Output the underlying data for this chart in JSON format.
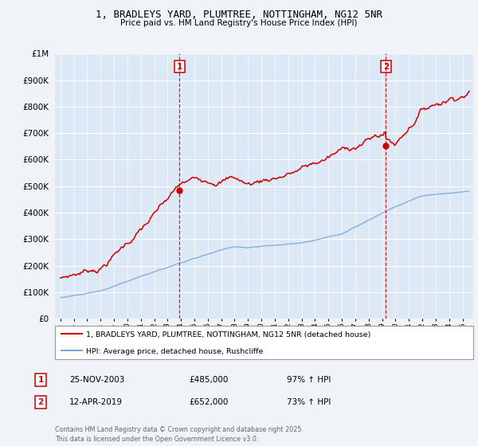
{
  "title": "1, BRADLEYS YARD, PLUMTREE, NOTTINGHAM, NG12 5NR",
  "subtitle": "Price paid vs. HM Land Registry's House Price Index (HPI)",
  "background_color": "#f0f4f8",
  "plot_bg_color": "#dce8f5",
  "legend_line1": "1, BRADLEYS YARD, PLUMTREE, NOTTINGHAM, NG12 5NR (detached house)",
  "legend_line2": "HPI: Average price, detached house, Rushcliffe",
  "annotation1": {
    "num": "1",
    "date": "25-NOV-2003",
    "price": "£485,000",
    "change": "97% ↑ HPI"
  },
  "annotation2": {
    "num": "2",
    "date": "12-APR-2019",
    "price": "£652,000",
    "change": "73% ↑ HPI"
  },
  "footer": "Contains HM Land Registry data © Crown copyright and database right 2025.\nThis data is licensed under the Open Government Licence v3.0.",
  "sale1_x": 2003.9,
  "sale1_y": 485000,
  "sale2_x": 2019.28,
  "sale2_y": 652000,
  "vline1_x": 2003.9,
  "vline2_x": 2019.28,
  "ylim": [
    0,
    1000000
  ],
  "xlim": [
    1994.6,
    2025.8
  ],
  "red_color": "#cc0000",
  "blue_color": "#7aaadd",
  "vline_color": "#cc0000"
}
